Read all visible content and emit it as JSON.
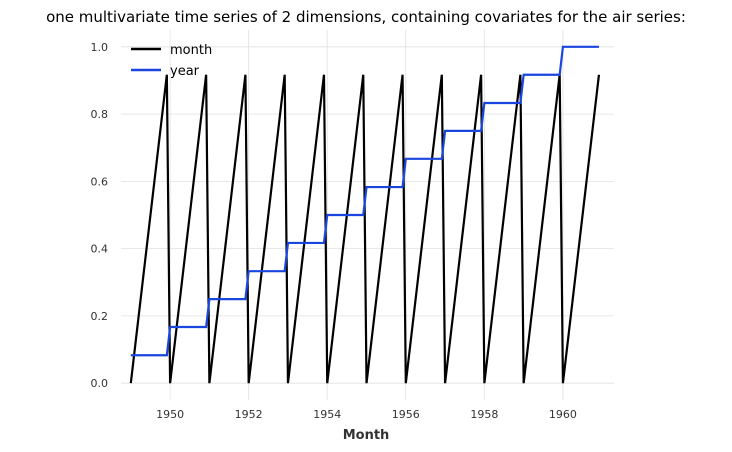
{
  "chart_data": {
    "type": "line",
    "title": "one multivariate time series of 2 dimensions, containing covariates for the air series:",
    "xlabel": "Month",
    "ylabel": "",
    "xlim": [
      1948.75,
      1961.3
    ],
    "ylim": [
      -0.05,
      1.05
    ],
    "x_ticks": [
      1950,
      1952,
      1954,
      1956,
      1958,
      1960
    ],
    "y_ticks": [
      "0.0",
      "0.2",
      "0.4",
      "0.6",
      "0.8",
      "1.0"
    ],
    "grid": true,
    "legend": "upper-left",
    "series": [
      {
        "name": "month",
        "color": "#000000",
        "step": "yearly sawtooth from 0 (January) to 0.917 (December)",
        "x": [
          1949,
          1949.917,
          1950,
          1950.917,
          1951,
          1951.917,
          1952,
          1952.917,
          1953,
          1953.917,
          1954,
          1954.917,
          1955,
          1955.917,
          1956,
          1956.917,
          1957,
          1957.917,
          1958,
          1958.917,
          1959,
          1959.917,
          1960,
          1960.917
        ],
        "values": [
          0,
          0.917,
          0,
          0.917,
          0,
          0.917,
          0,
          0.917,
          0,
          0.917,
          0,
          0.917,
          0,
          0.917,
          0,
          0.917,
          0,
          0.917,
          0,
          0.917,
          0,
          0.917,
          0,
          0.917
        ]
      },
      {
        "name": "year",
        "color": "#1a46e0",
        "years": [
          1949,
          1950,
          1951,
          1952,
          1953,
          1954,
          1955,
          1956,
          1957,
          1958,
          1959,
          1960
        ],
        "values": [
          0.083,
          0.167,
          0.25,
          0.333,
          0.417,
          0.5,
          0.583,
          0.667,
          0.75,
          0.833,
          0.917,
          1.0
        ]
      }
    ]
  }
}
